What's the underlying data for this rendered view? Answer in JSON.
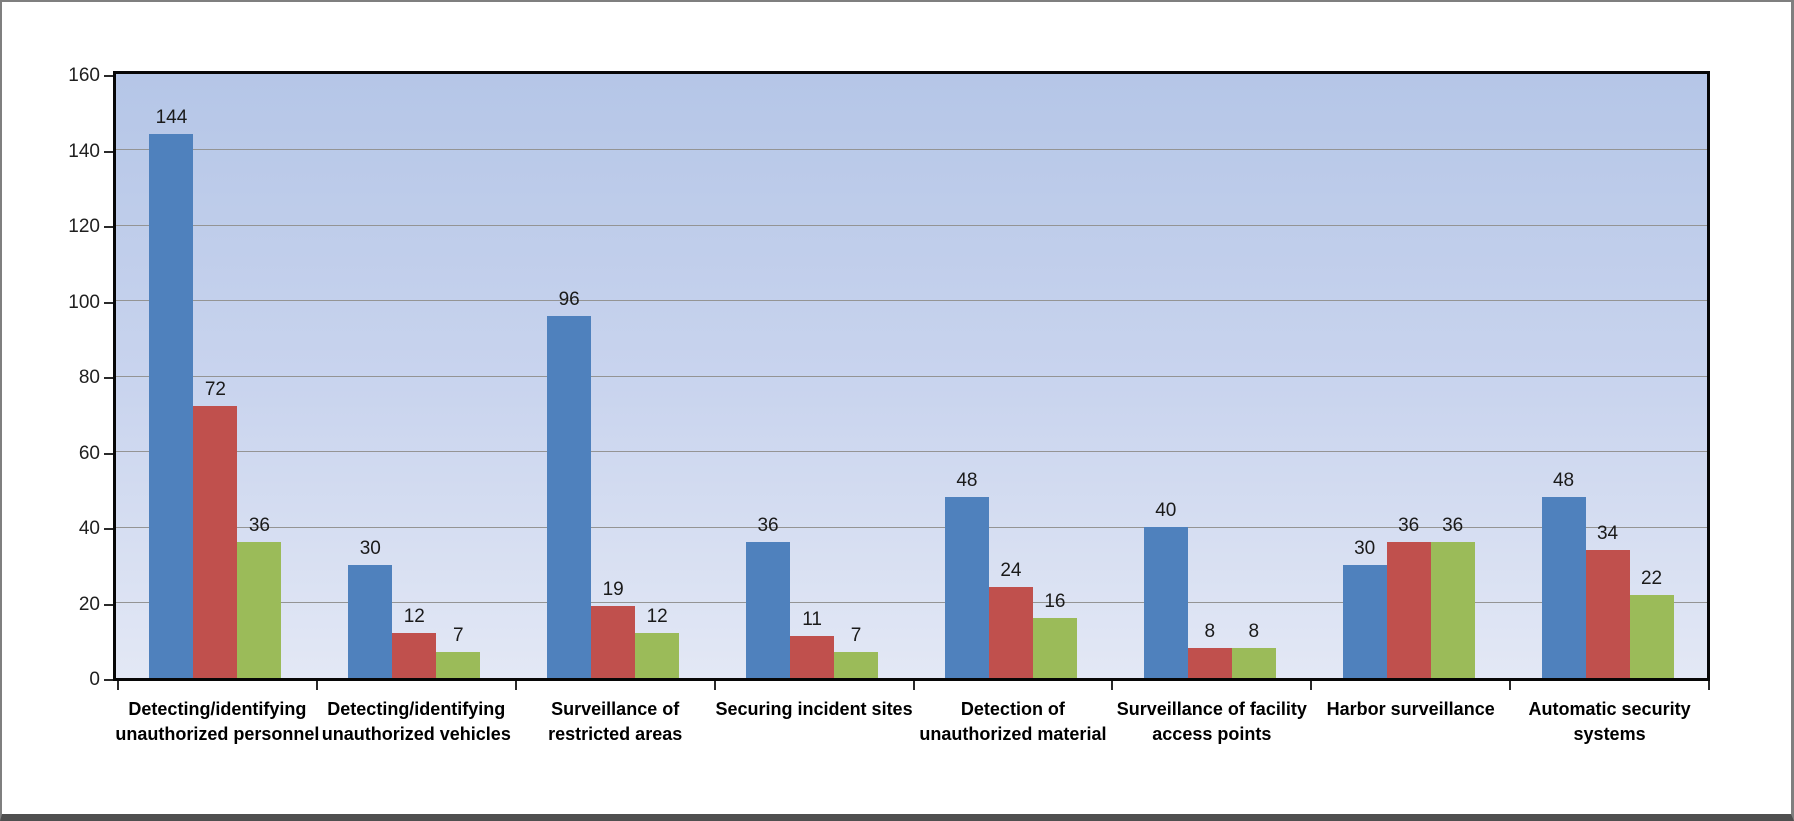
{
  "chart_data": {
    "type": "bar",
    "title": "",
    "categories": [
      "Detecting/identifying unauthorized personnel",
      "Detecting/identifying unauthorized vehicles",
      "Surveillance of restricted areas",
      "Securing incident sites",
      "Detection of unauthorized material",
      "Surveillance of facility access points",
      "Harbor surveillance",
      "Automatic security systems"
    ],
    "category_label_lines": [
      [
        "Detecting/identifying",
        "unauthorized personnel"
      ],
      [
        "Detecting/identifying",
        "unauthorized vehicles"
      ],
      [
        "Surveillance of",
        "restricted areas"
      ],
      [
        "Securing incident sites"
      ],
      [
        "Detection of",
        "unauthorized material"
      ],
      [
        "Surveillance of facility",
        "access points"
      ],
      [
        "Harbor surveillance"
      ],
      [
        "Automatic security",
        "systems"
      ]
    ],
    "series": [
      {
        "color": "#4F81BD",
        "values": [
          144,
          30,
          96,
          36,
          48,
          40,
          30,
          48
        ]
      },
      {
        "color": "#C0504D",
        "values": [
          72,
          12,
          19,
          11,
          24,
          8,
          36,
          34
        ]
      },
      {
        "color": "#9BBB59",
        "values": [
          36,
          7,
          12,
          7,
          16,
          8,
          36,
          22
        ]
      }
    ],
    "xlabel": "",
    "ylabel": "",
    "ylim": [
      0,
      160
    ],
    "yticks": [
      0,
      20,
      40,
      60,
      80,
      100,
      120,
      140,
      160
    ],
    "grid": true,
    "data_labels": true,
    "legend": false,
    "colors": {
      "plot_bg_top": "#B5C6E7",
      "plot_bg_bottom": "#E3E8F5",
      "gridline": "#949494",
      "plot_border": "#070707",
      "text": "#1A1A1A",
      "frame_border": "#7F7F7F"
    }
  }
}
